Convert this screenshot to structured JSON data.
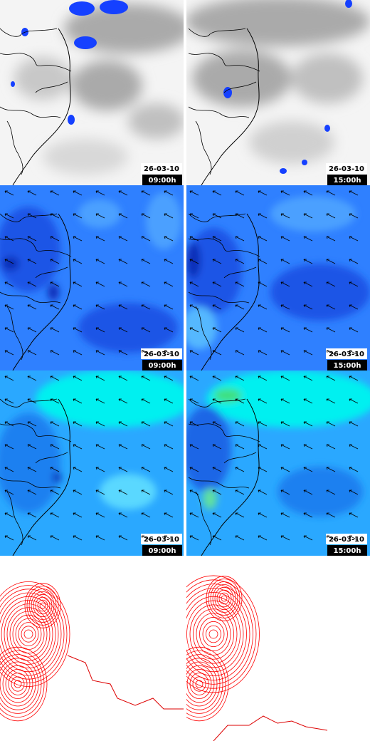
{
  "panels": [
    {
      "date": "26-03-10",
      "time": "09:00h"
    },
    {
      "date": "26-03-10",
      "time": "15:00h"
    },
    {
      "date": "26-03-10",
      "time": "09:00h"
    },
    {
      "date": "26-03-10",
      "time": "15:00h"
    },
    {
      "date": "26-03-10",
      "time": "09:00h"
    },
    {
      "date": "26-03-10",
      "time": "15:00h"
    }
  ]
}
